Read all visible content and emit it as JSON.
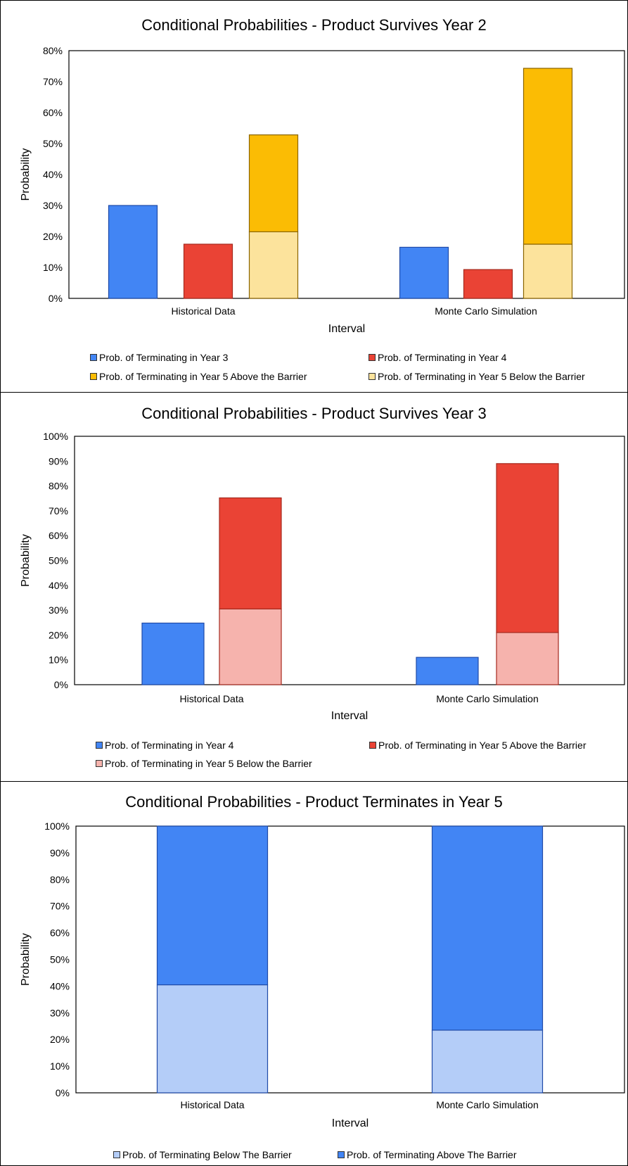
{
  "chart_data": [
    {
      "type": "bar",
      "title": "Conditional Probabilities - Product Survives  Year 2",
      "xlabel": "Interval",
      "ylabel": "Probability",
      "ylim": [
        0,
        0.8
      ],
      "yticks": [
        "0%",
        "10%",
        "20%",
        "30%",
        "40%",
        "50%",
        "60%",
        "70%",
        "80%"
      ],
      "categories": [
        "Historical Data",
        "Monte Carlo Simulation"
      ],
      "grid": false,
      "legend_position": "bottom",
      "groups": [
        {
          "segments": [
            {
              "series": 0,
              "values": [
                0.3,
                0.165
              ]
            }
          ]
        },
        {
          "segments": [
            {
              "series": 1,
              "values": [
                0.175,
                0.093
              ]
            }
          ]
        },
        {
          "segments": [
            {
              "series": 3,
              "values": [
                0.215,
                0.175
              ]
            },
            {
              "series": 2,
              "values": [
                0.313,
                0.568
              ]
            }
          ]
        }
      ],
      "series": [
        {
          "name": "Prob. of Terminating in Year 3",
          "color": "#4285F4",
          "stroke": "#1F4AA8"
        },
        {
          "name": "Prob. of Terminating in Year 4",
          "color": "#EA4335",
          "stroke": "#A52A1E"
        },
        {
          "name": "Prob. of Terminating in Year 5 Above the Barrier",
          "color": "#FBBC04",
          "stroke": "#8A6400"
        },
        {
          "name": "Prob. of Terminating in Year 5 Below the Barrier",
          "color": "#FCE39C",
          "stroke": "#8A6400"
        }
      ]
    },
    {
      "type": "bar",
      "title": "Conditional Probabilities - Product Survives  Year 3",
      "xlabel": "Interval",
      "ylabel": "Probability",
      "ylim": [
        0,
        1.0
      ],
      "yticks": [
        "0%",
        "10%",
        "20%",
        "30%",
        "40%",
        "50%",
        "60%",
        "70%",
        "80%",
        "90%",
        "100%"
      ],
      "categories": [
        "Historical Data",
        "Monte Carlo Simulation"
      ],
      "grid": false,
      "legend_position": "bottom",
      "groups": [
        {
          "segments": [
            {
              "series": 0,
              "values": [
                0.248,
                0.11
              ]
            }
          ]
        },
        {
          "segments": [
            {
              "series": 2,
              "values": [
                0.305,
                0.21
              ]
            },
            {
              "series": 1,
              "values": [
                0.447,
                0.68
              ]
            }
          ]
        }
      ],
      "series": [
        {
          "name": "Prob. of Terminating in Year 4",
          "color": "#4285F4",
          "stroke": "#1F4AA8"
        },
        {
          "name": "Prob. of Terminating in Year 5 Above the Barrier",
          "color": "#EA4335",
          "stroke": "#A52A1E"
        },
        {
          "name": "Prob. of Terminating in Year 5 Below the Barrier",
          "color": "#F6B3AD",
          "stroke": "#A52A1E"
        }
      ]
    },
    {
      "type": "bar",
      "title": "Conditional Probabilities - Product Terminates in Year 5",
      "xlabel": "Interval",
      "ylabel": "Probability",
      "ylim": [
        0,
        1.0
      ],
      "yticks": [
        "0%",
        "10%",
        "20%",
        "30%",
        "40%",
        "50%",
        "60%",
        "70%",
        "80%",
        "90%",
        "100%"
      ],
      "categories": [
        "Historical Data",
        "Monte Carlo Simulation"
      ],
      "grid": false,
      "legend_position": "bottom",
      "groups": [
        {
          "segments": [
            {
              "series": 0,
              "values": [
                0.405,
                0.235
              ]
            },
            {
              "series": 1,
              "values": [
                0.595,
                0.765
              ]
            }
          ]
        }
      ],
      "series": [
        {
          "name": "Prob. of Terminating Below The Barrier",
          "color": "#B4CDF8",
          "stroke": "#1F4AA8"
        },
        {
          "name": "Prob. of Terminating Above The Barrier",
          "color": "#4285F4",
          "stroke": "#1F4AA8"
        }
      ]
    }
  ]
}
